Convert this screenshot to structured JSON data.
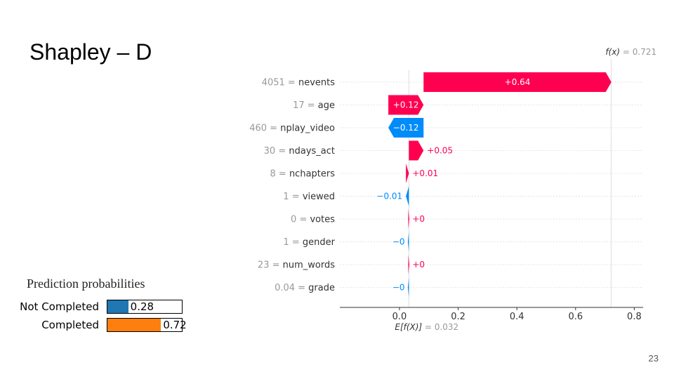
{
  "slide": {
    "title": "Shapley – D",
    "page_number": "23"
  },
  "chart_data": [
    {
      "type": "waterfall",
      "fx_label": "f(x)",
      "fx_value": "= 0.721",
      "fx": 0.721,
      "base_label": "E[f(X)]",
      "base_value": "= 0.032",
      "base": 0.032,
      "xlim": [
        -0.2,
        0.85
      ],
      "xticks": [
        0.0,
        0.2,
        0.4,
        0.6,
        0.8
      ],
      "xtick_labels": [
        "0.0",
        "0.2",
        "0.4",
        "0.6",
        "0.8"
      ],
      "colors": {
        "positive": "#ff0051",
        "negative": "#008bfb"
      },
      "features": [
        {
          "value": "4051",
          "name": "nevents",
          "shap": 0.64,
          "label": "+0.64"
        },
        {
          "value": "17",
          "name": "age",
          "shap": 0.12,
          "label": "+0.12"
        },
        {
          "value": "460",
          "name": "nplay_video",
          "shap": -0.12,
          "label": "−0.12"
        },
        {
          "value": "30",
          "name": "ndays_act",
          "shap": 0.05,
          "label": "+0.05"
        },
        {
          "value": "8",
          "name": "nchapters",
          "shap": 0.01,
          "label": "+0.01"
        },
        {
          "value": "1",
          "name": "viewed",
          "shap": -0.01,
          "label": "−0.01"
        },
        {
          "value": "0",
          "name": "votes",
          "shap": 0.002,
          "label": "+0"
        },
        {
          "value": "1",
          "name": "gender",
          "shap": -0.002,
          "label": "−0"
        },
        {
          "value": "23",
          "name": "num_words",
          "shap": 0.002,
          "label": "+0"
        },
        {
          "value": "0.04",
          "name": "grade",
          "shap": -0.002,
          "label": "−0"
        }
      ]
    },
    {
      "type": "bar",
      "title": "Prediction probabilities",
      "categories": [
        "Not Completed",
        "Completed"
      ],
      "values": [
        0.28,
        0.72
      ],
      "value_labels": [
        "0.28",
        "0.72"
      ],
      "colors": [
        "#1f77b4",
        "#ff7f0e"
      ],
      "xlim": [
        0,
        1
      ]
    }
  ]
}
